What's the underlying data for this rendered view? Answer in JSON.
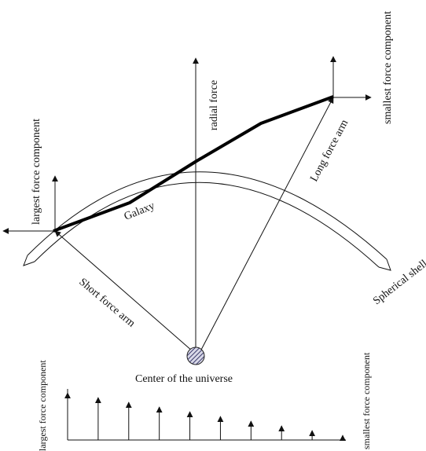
{
  "labels": {
    "radial_force": "radial force",
    "largest_force_component": "largest force component",
    "smallest_force_component": "smallest force component",
    "long_force_arm": "Long force arm",
    "short_force_arm": "Short force arm",
    "galaxy": "Galaxy",
    "spherical_shell": "Spherical shell",
    "center_of_universe": "Center of the universe"
  },
  "bottom_chart": {
    "left_label": "largest force component",
    "right_label": "smallest force component",
    "arrow_magnitudes": [
      10,
      9,
      8,
      7,
      6,
      5,
      4,
      3,
      2,
      1
    ]
  },
  "colors": {
    "line": "#111111",
    "galaxy": "#000000",
    "center_fill": "#3a3a6a"
  }
}
